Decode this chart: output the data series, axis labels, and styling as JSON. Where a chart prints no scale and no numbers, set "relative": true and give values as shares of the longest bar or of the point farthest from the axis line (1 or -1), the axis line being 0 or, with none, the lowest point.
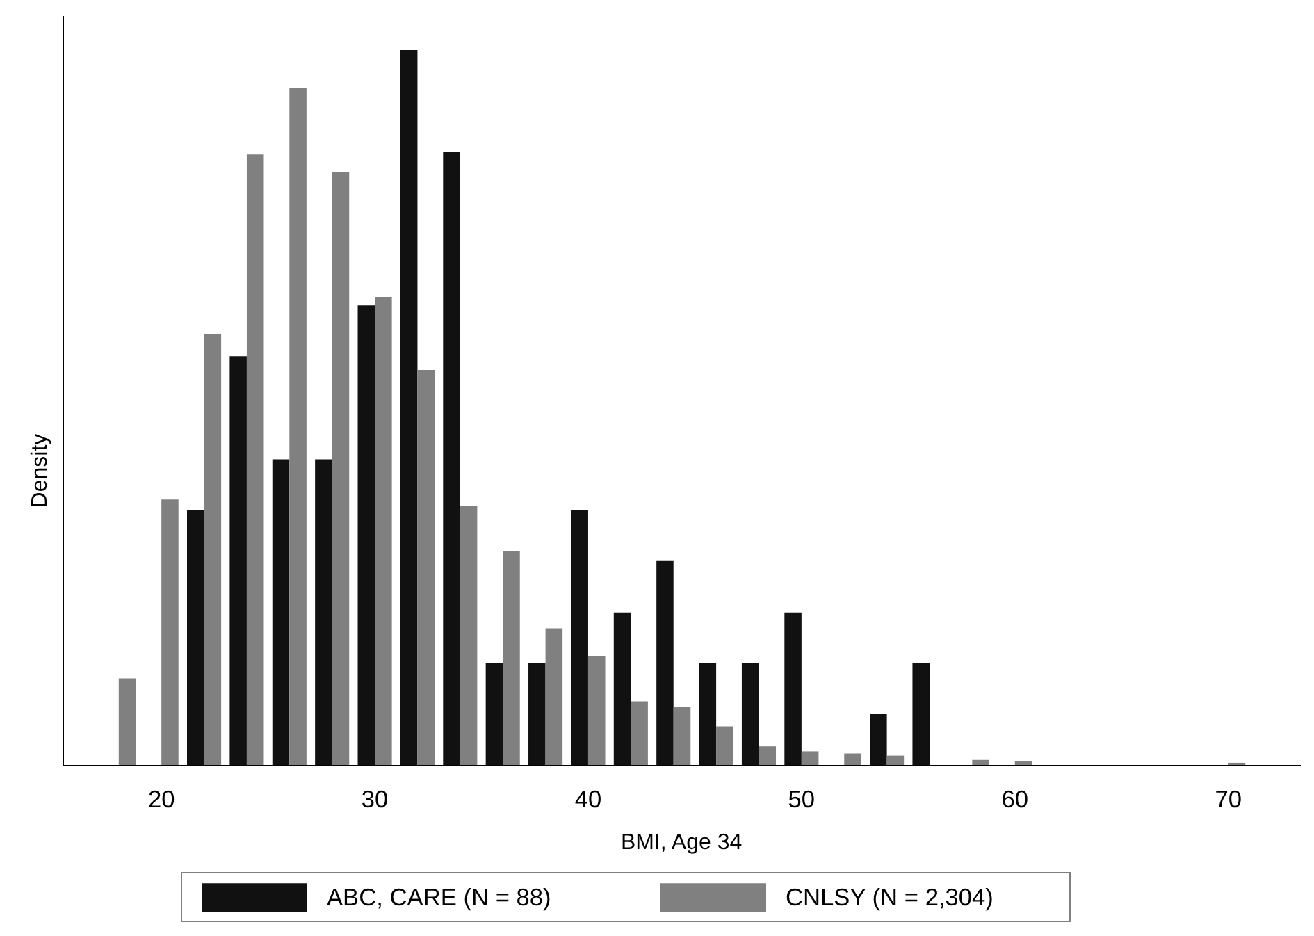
{
  "chart_data": {
    "type": "bar",
    "relative": true,
    "xlabel": "BMI, Age 34",
    "ylabel": "Density",
    "categories": [
      null,
      "20",
      null,
      null,
      null,
      null,
      "30",
      null,
      null,
      null,
      null,
      "40",
      null,
      null,
      null,
      null,
      "50",
      null,
      null,
      null,
      null,
      "60",
      null,
      null,
      null,
      null,
      "70"
    ],
    "grid": false,
    "legend": "bottom",
    "series": [
      {
        "name": "ABC, CARE (N = 88)",
        "color": "#111111",
        "values": [
          null,
          null,
          0.357,
          0.572,
          0.428,
          0.428,
          0.643,
          1,
          0.857,
          0.143,
          0.143,
          0.357,
          0.214,
          0.286,
          0.143,
          0.143,
          0.214,
          null,
          0.072,
          0.143,
          null,
          null,
          null,
          null,
          null,
          null,
          null
        ]
      },
      {
        "name": "CNLSY (N = 2,304)",
        "color": "#808080",
        "values": [
          0.122,
          0.372,
          0.603,
          0.854,
          0.947,
          0.829,
          0.655,
          0.553,
          0.363,
          0.3,
          0.192,
          0.153,
          0.09,
          0.082,
          0.055,
          0.027,
          0.02,
          0.017,
          0.014,
          null,
          0.008,
          0.006,
          null,
          null,
          null,
          null,
          0.004
        ]
      }
    ]
  }
}
